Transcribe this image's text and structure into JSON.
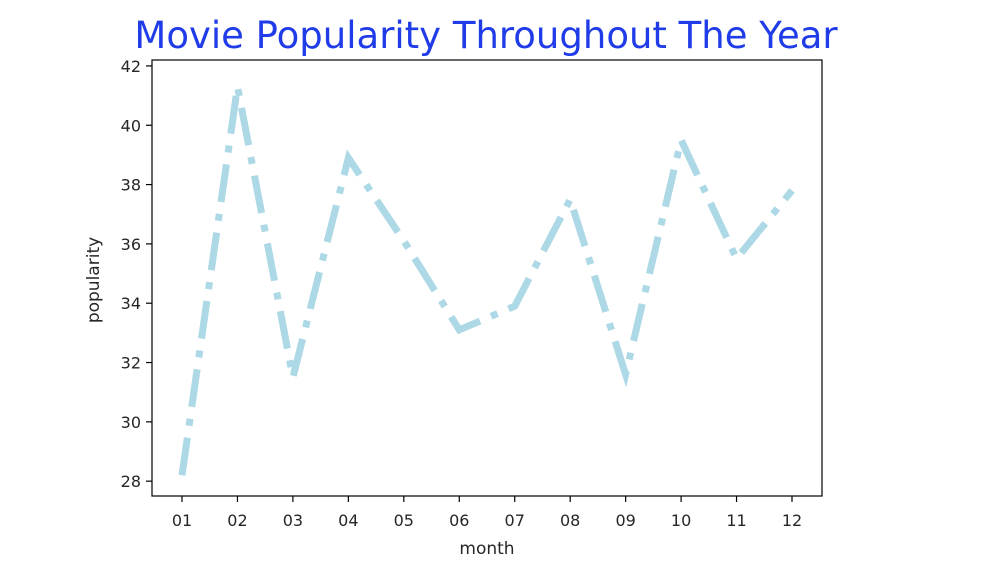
{
  "chart_data": {
    "type": "line",
    "title": "Movie Popularity Throughout The Year",
    "xlabel": "month",
    "ylabel": "popularity",
    "categories": [
      "01",
      "02",
      "03",
      "04",
      "05",
      "06",
      "07",
      "08",
      "09",
      "10",
      "11",
      "12"
    ],
    "series": [
      {
        "values": [
          28.2,
          41.3,
          31.5,
          38.9,
          36.1,
          33.1,
          33.9,
          37.5,
          31.6,
          39.5,
          35.5,
          37.8
        ]
      }
    ],
    "ylim": [
      27.5,
      42.2
    ],
    "yticks": [
      28,
      30,
      32,
      34,
      36,
      38,
      40,
      42
    ],
    "grid": false,
    "colors": {
      "line": "#add8e6",
      "title": "#1f3ce8",
      "axis": "#000000"
    }
  }
}
